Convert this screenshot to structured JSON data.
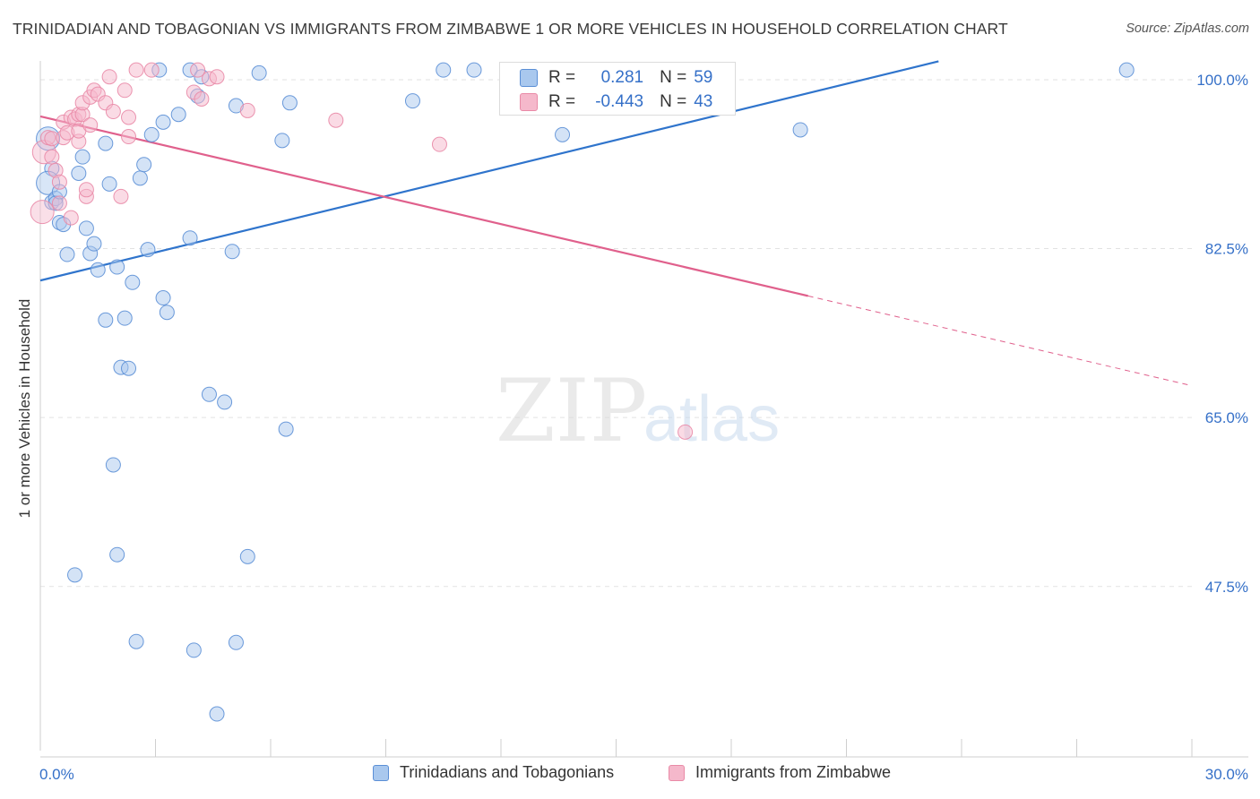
{
  "header": {
    "title": "TRINIDADIAN AND TOBAGONIAN VS IMMIGRANTS FROM ZIMBABWE 1 OR MORE VEHICLES IN HOUSEHOLD CORRELATION CHART",
    "source": "Source: ZipAtlas.com"
  },
  "watermark": {
    "zip": "ZIP",
    "atlas": "atlas"
  },
  "stats_box": {
    "rows": [
      {
        "r_label": "R =",
        "r_value": "0.281",
        "n_label": "N =",
        "n_value": "59"
      },
      {
        "r_label": "R =",
        "r_value": "-0.443",
        "n_label": "N =",
        "n_value": "43"
      }
    ]
  },
  "colors": {
    "blue_fill": "#a9c8ee",
    "blue_stroke": "#5b8fd6",
    "blue_line": "#2f74cc",
    "pink_fill": "#f5b8cb",
    "pink_stroke": "#e98aa7",
    "pink_line": "#e0608c",
    "grid": "#e2e2e2",
    "tick_label": "#3570c8",
    "axis": "#cfcfcf"
  },
  "chart_data": {
    "type": "scatter",
    "title": "TRINIDADIAN AND TOBAGONIAN VS IMMIGRANTS FROM ZIMBABWE 1 OR MORE VEHICLES IN HOUSEHOLD CORRELATION CHART",
    "xlabel": "",
    "ylabel": "1 or more Vehicles in Household",
    "xlim": [
      0,
      30
    ],
    "ylim": [
      30.5,
      102.5
    ],
    "x_tick_labels": [
      {
        "value": 0,
        "label": "0.0%"
      },
      {
        "value": 30,
        "label": "30.0%"
      }
    ],
    "y_tick_labels": [
      {
        "value": 100,
        "label": "100.0%"
      },
      {
        "value": 82.5,
        "label": "82.5%"
      },
      {
        "value": 65,
        "label": "65.0%"
      },
      {
        "value": 47.5,
        "label": "47.5%"
      }
    ],
    "x_minor_ticks": [
      3,
      6,
      9,
      12,
      15,
      18,
      21,
      24,
      27,
      30
    ],
    "legend_placement": "bottom-center",
    "series": [
      {
        "name": "Trinidadians and Tobagonians",
        "color_key": "blue",
        "r": 0.281,
        "n": 59,
        "trend": {
          "x": [
            0,
            23.4
          ],
          "y": [
            79.2,
            101.9
          ]
        },
        "points": [
          {
            "x": 0.2,
            "y": 93.9,
            "big": true
          },
          {
            "x": 0.3,
            "y": 90.8
          },
          {
            "x": 0.2,
            "y": 89.3,
            "big": true
          },
          {
            "x": 0.3,
            "y": 87.3
          },
          {
            "x": 0.4,
            "y": 87.7
          },
          {
            "x": 0.4,
            "y": 87.2
          },
          {
            "x": 0.5,
            "y": 88.4
          },
          {
            "x": 0.5,
            "y": 85.2
          },
          {
            "x": 0.6,
            "y": 85.0
          },
          {
            "x": 0.7,
            "y": 81.9
          },
          {
            "x": 1.0,
            "y": 90.3
          },
          {
            "x": 1.1,
            "y": 92.0
          },
          {
            "x": 1.2,
            "y": 84.6
          },
          {
            "x": 1.3,
            "y": 82.0
          },
          {
            "x": 1.4,
            "y": 83.0
          },
          {
            "x": 1.5,
            "y": 80.3
          },
          {
            "x": 1.7,
            "y": 75.1
          },
          {
            "x": 1.7,
            "y": 93.4
          },
          {
            "x": 1.8,
            "y": 89.2
          },
          {
            "x": 2.0,
            "y": 80.6
          },
          {
            "x": 2.1,
            "y": 70.2
          },
          {
            "x": 2.2,
            "y": 75.3
          },
          {
            "x": 2.3,
            "y": 70.1
          },
          {
            "x": 2.4,
            "y": 79.0
          },
          {
            "x": 2.6,
            "y": 89.8
          },
          {
            "x": 2.7,
            "y": 91.2
          },
          {
            "x": 2.8,
            "y": 82.4
          },
          {
            "x": 2.9,
            "y": 94.3
          },
          {
            "x": 3.1,
            "y": 101.0
          },
          {
            "x": 3.2,
            "y": 95.6
          },
          {
            "x": 3.2,
            "y": 77.4
          },
          {
            "x": 3.3,
            "y": 75.9
          },
          {
            "x": 3.6,
            "y": 96.4
          },
          {
            "x": 3.9,
            "y": 101.0
          },
          {
            "x": 3.9,
            "y": 83.6
          },
          {
            "x": 4.1,
            "y": 98.3
          },
          {
            "x": 4.2,
            "y": 100.3
          },
          {
            "x": 4.4,
            "y": 67.4
          },
          {
            "x": 4.8,
            "y": 66.6
          },
          {
            "x": 5.0,
            "y": 82.2
          },
          {
            "x": 5.1,
            "y": 97.3
          },
          {
            "x": 5.7,
            "y": 100.7
          },
          {
            "x": 6.3,
            "y": 93.7
          },
          {
            "x": 6.4,
            "y": 63.8
          },
          {
            "x": 6.5,
            "y": 97.6
          },
          {
            "x": 9.7,
            "y": 97.8
          },
          {
            "x": 10.5,
            "y": 101.0
          },
          {
            "x": 11.3,
            "y": 101.0
          },
          {
            "x": 13.6,
            "y": 94.3
          },
          {
            "x": 19.8,
            "y": 94.8
          },
          {
            "x": 28.3,
            "y": 101.0
          },
          {
            "x": 1.9,
            "y": 60.1
          },
          {
            "x": 2.0,
            "y": 50.8
          },
          {
            "x": 0.9,
            "y": 48.7
          },
          {
            "x": 5.4,
            "y": 50.6
          },
          {
            "x": 2.5,
            "y": 41.8
          },
          {
            "x": 4.0,
            "y": 40.9
          },
          {
            "x": 5.1,
            "y": 41.7
          },
          {
            "x": 4.6,
            "y": 34.3
          }
        ]
      },
      {
        "name": "Immigrants from Zimbabwe",
        "color_key": "pink",
        "r": -0.443,
        "n": 43,
        "trend": {
          "x": [
            0,
            20.0
          ],
          "y": [
            96.2,
            77.6
          ]
        },
        "trend_dashed": {
          "x": [
            20.0,
            30.0
          ],
          "y": [
            77.6,
            68.3
          ]
        },
        "points": [
          {
            "x": 0.05,
            "y": 86.3,
            "big": true
          },
          {
            "x": 0.1,
            "y": 92.5,
            "big": true
          },
          {
            "x": 0.2,
            "y": 94.0
          },
          {
            "x": 0.3,
            "y": 93.9
          },
          {
            "x": 0.3,
            "y": 92.0
          },
          {
            "x": 0.4,
            "y": 90.6
          },
          {
            "x": 0.5,
            "y": 87.2
          },
          {
            "x": 0.6,
            "y": 94.0
          },
          {
            "x": 0.6,
            "y": 95.6
          },
          {
            "x": 0.7,
            "y": 94.5
          },
          {
            "x": 0.8,
            "y": 96.1
          },
          {
            "x": 0.9,
            "y": 95.9
          },
          {
            "x": 0.8,
            "y": 85.7
          },
          {
            "x": 1.0,
            "y": 93.6
          },
          {
            "x": 1.0,
            "y": 94.7
          },
          {
            "x": 1.0,
            "y": 96.4
          },
          {
            "x": 1.1,
            "y": 96.4
          },
          {
            "x": 1.1,
            "y": 97.6
          },
          {
            "x": 1.2,
            "y": 87.9
          },
          {
            "x": 1.2,
            "y": 88.6
          },
          {
            "x": 1.3,
            "y": 98.2
          },
          {
            "x": 1.4,
            "y": 98.9
          },
          {
            "x": 1.5,
            "y": 98.5
          },
          {
            "x": 1.7,
            "y": 97.6
          },
          {
            "x": 1.8,
            "y": 100.3
          },
          {
            "x": 1.9,
            "y": 96.7
          },
          {
            "x": 2.1,
            "y": 87.9
          },
          {
            "x": 2.2,
            "y": 98.9
          },
          {
            "x": 2.3,
            "y": 96.1
          },
          {
            "x": 2.3,
            "y": 94.1
          },
          {
            "x": 2.5,
            "y": 101.0
          },
          {
            "x": 2.9,
            "y": 101.0
          },
          {
            "x": 4.0,
            "y": 98.7
          },
          {
            "x": 4.1,
            "y": 101.0
          },
          {
            "x": 4.2,
            "y": 98.0
          },
          {
            "x": 4.4,
            "y": 100.1
          },
          {
            "x": 4.6,
            "y": 100.3
          },
          {
            "x": 5.4,
            "y": 96.8
          },
          {
            "x": 7.7,
            "y": 95.8
          },
          {
            "x": 10.4,
            "y": 93.3
          },
          {
            "x": 16.8,
            "y": 63.5
          },
          {
            "x": 0.5,
            "y": 89.4
          },
          {
            "x": 1.3,
            "y": 95.3
          }
        ]
      }
    ]
  },
  "bottom_legend": {
    "items": [
      {
        "label": "Trinidadians and Tobagonians"
      },
      {
        "label": "Immigrants from Zimbabwe"
      }
    ]
  }
}
